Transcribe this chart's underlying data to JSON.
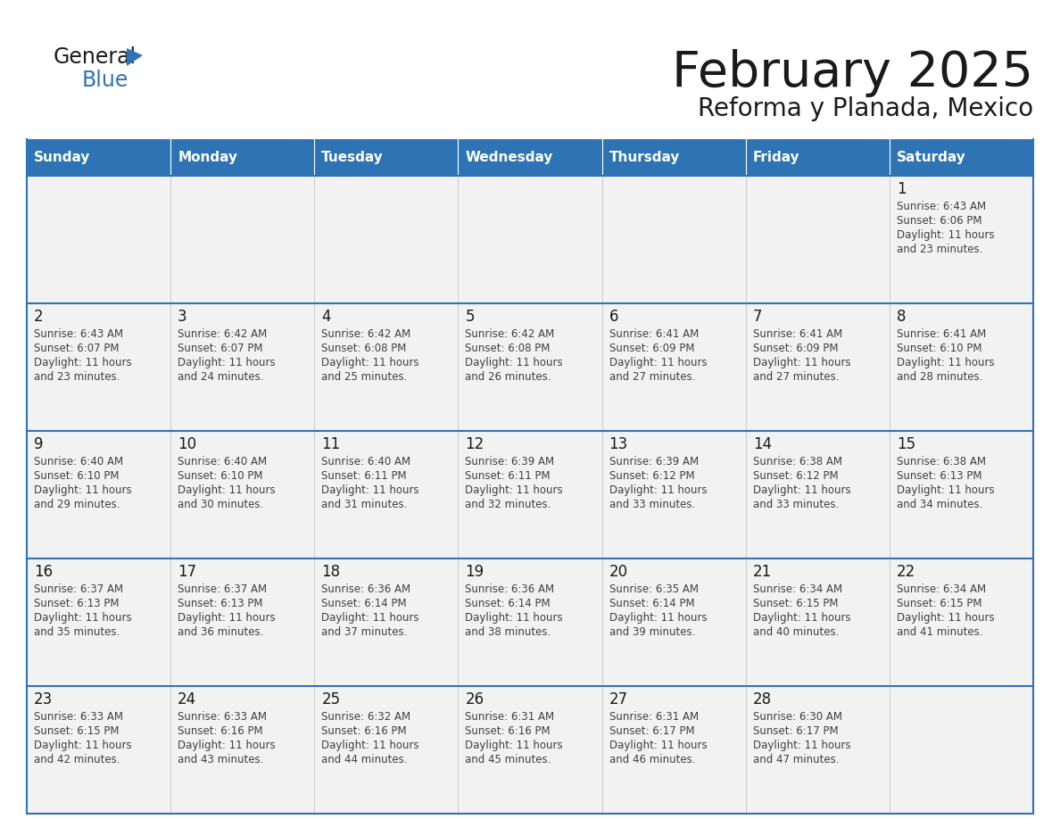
{
  "title": "February 2025",
  "subtitle": "Reforma y Planada, Mexico",
  "header_bg": "#2E74B5",
  "header_text_color": "#FFFFFF",
  "cell_bg": "#F2F2F2",
  "border_color": "#2E74B5",
  "day_headers": [
    "Sunday",
    "Monday",
    "Tuesday",
    "Wednesday",
    "Thursday",
    "Friday",
    "Saturday"
  ],
  "title_color": "#1A1A1A",
  "subtitle_color": "#1A1A1A",
  "day_num_color": "#1A1A1A",
  "cell_text_color": "#404040",
  "logo_general_color": "#1A1A1A",
  "logo_blue_color": "#2E74B5",
  "logo_triangle_color": "#2E74B5",
  "calendar_data": [
    [
      null,
      null,
      null,
      null,
      null,
      null,
      {
        "day": 1,
        "sunrise": "6:43 AM",
        "sunset": "6:06 PM",
        "daylight": "11 hours and 23 minutes."
      }
    ],
    [
      {
        "day": 2,
        "sunrise": "6:43 AM",
        "sunset": "6:07 PM",
        "daylight": "11 hours and 23 minutes."
      },
      {
        "day": 3,
        "sunrise": "6:42 AM",
        "sunset": "6:07 PM",
        "daylight": "11 hours and 24 minutes."
      },
      {
        "day": 4,
        "sunrise": "6:42 AM",
        "sunset": "6:08 PM",
        "daylight": "11 hours and 25 minutes."
      },
      {
        "day": 5,
        "sunrise": "6:42 AM",
        "sunset": "6:08 PM",
        "daylight": "11 hours and 26 minutes."
      },
      {
        "day": 6,
        "sunrise": "6:41 AM",
        "sunset": "6:09 PM",
        "daylight": "11 hours and 27 minutes."
      },
      {
        "day": 7,
        "sunrise": "6:41 AM",
        "sunset": "6:09 PM",
        "daylight": "11 hours and 27 minutes."
      },
      {
        "day": 8,
        "sunrise": "6:41 AM",
        "sunset": "6:10 PM",
        "daylight": "11 hours and 28 minutes."
      }
    ],
    [
      {
        "day": 9,
        "sunrise": "6:40 AM",
        "sunset": "6:10 PM",
        "daylight": "11 hours and 29 minutes."
      },
      {
        "day": 10,
        "sunrise": "6:40 AM",
        "sunset": "6:10 PM",
        "daylight": "11 hours and 30 minutes."
      },
      {
        "day": 11,
        "sunrise": "6:40 AM",
        "sunset": "6:11 PM",
        "daylight": "11 hours and 31 minutes."
      },
      {
        "day": 12,
        "sunrise": "6:39 AM",
        "sunset": "6:11 PM",
        "daylight": "11 hours and 32 minutes."
      },
      {
        "day": 13,
        "sunrise": "6:39 AM",
        "sunset": "6:12 PM",
        "daylight": "11 hours and 33 minutes."
      },
      {
        "day": 14,
        "sunrise": "6:38 AM",
        "sunset": "6:12 PM",
        "daylight": "11 hours and 33 minutes."
      },
      {
        "day": 15,
        "sunrise": "6:38 AM",
        "sunset": "6:13 PM",
        "daylight": "11 hours and 34 minutes."
      }
    ],
    [
      {
        "day": 16,
        "sunrise": "6:37 AM",
        "sunset": "6:13 PM",
        "daylight": "11 hours and 35 minutes."
      },
      {
        "day": 17,
        "sunrise": "6:37 AM",
        "sunset": "6:13 PM",
        "daylight": "11 hours and 36 minutes."
      },
      {
        "day": 18,
        "sunrise": "6:36 AM",
        "sunset": "6:14 PM",
        "daylight": "11 hours and 37 minutes."
      },
      {
        "day": 19,
        "sunrise": "6:36 AM",
        "sunset": "6:14 PM",
        "daylight": "11 hours and 38 minutes."
      },
      {
        "day": 20,
        "sunrise": "6:35 AM",
        "sunset": "6:14 PM",
        "daylight": "11 hours and 39 minutes."
      },
      {
        "day": 21,
        "sunrise": "6:34 AM",
        "sunset": "6:15 PM",
        "daylight": "11 hours and 40 minutes."
      },
      {
        "day": 22,
        "sunrise": "6:34 AM",
        "sunset": "6:15 PM",
        "daylight": "11 hours and 41 minutes."
      }
    ],
    [
      {
        "day": 23,
        "sunrise": "6:33 AM",
        "sunset": "6:15 PM",
        "daylight": "11 hours and 42 minutes."
      },
      {
        "day": 24,
        "sunrise": "6:33 AM",
        "sunset": "6:16 PM",
        "daylight": "11 hours and 43 minutes."
      },
      {
        "day": 25,
        "sunrise": "6:32 AM",
        "sunset": "6:16 PM",
        "daylight": "11 hours and 44 minutes."
      },
      {
        "day": 26,
        "sunrise": "6:31 AM",
        "sunset": "6:16 PM",
        "daylight": "11 hours and 45 minutes."
      },
      {
        "day": 27,
        "sunrise": "6:31 AM",
        "sunset": "6:17 PM",
        "daylight": "11 hours and 46 minutes."
      },
      {
        "day": 28,
        "sunrise": "6:30 AM",
        "sunset": "6:17 PM",
        "daylight": "11 hours and 47 minutes."
      },
      null
    ]
  ]
}
